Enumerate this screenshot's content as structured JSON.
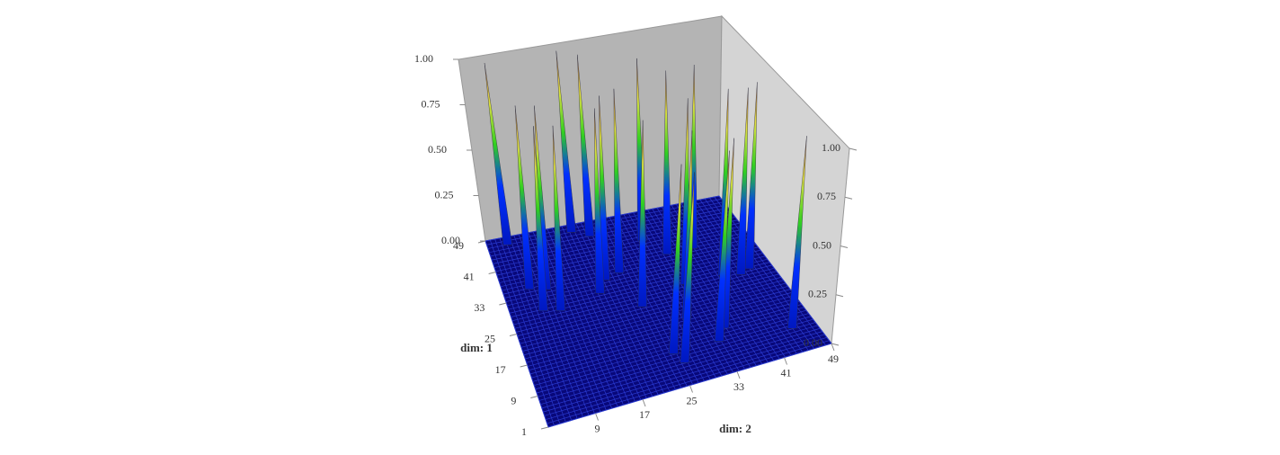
{
  "chart_data": {
    "type": "surface3d",
    "x_label": "dim: 2",
    "y_label": "dim: 1",
    "xlim": [
      1,
      49
    ],
    "ylim": [
      1,
      49
    ],
    "zlim": [
      0,
      1
    ],
    "xticks": [
      9,
      17,
      25,
      33,
      41,
      49
    ],
    "yticks": [
      1,
      9,
      17,
      25,
      33,
      41,
      49
    ],
    "zticks": [
      {
        "value": 0,
        "label": "0.00"
      },
      {
        "value": 0.25,
        "label": "0.25"
      },
      {
        "value": 0.5,
        "label": "0.50"
      },
      {
        "value": 0.75,
        "label": "0.75"
      },
      {
        "value": 1,
        "label": "1.00"
      }
    ],
    "x": [
      5,
      6,
      7,
      9,
      10,
      20,
      21,
      23,
      24,
      26,
      25,
      33,
      33,
      35,
      40,
      43,
      45,
      38,
      33,
      45,
      18,
      30,
      18,
      30
    ],
    "y": [
      47,
      35,
      29,
      34,
      28,
      33,
      45,
      34,
      24,
      7,
      10,
      27,
      10,
      13,
      27,
      26,
      8,
      36,
      36,
      27,
      47,
      41,
      30,
      18
    ],
    "z": [
      1,
      1,
      1,
      1,
      1,
      1,
      1,
      1,
      1,
      1,
      1,
      1,
      1,
      1,
      1,
      1,
      1,
      1,
      1,
      1,
      1,
      1,
      1,
      1
    ]
  }
}
